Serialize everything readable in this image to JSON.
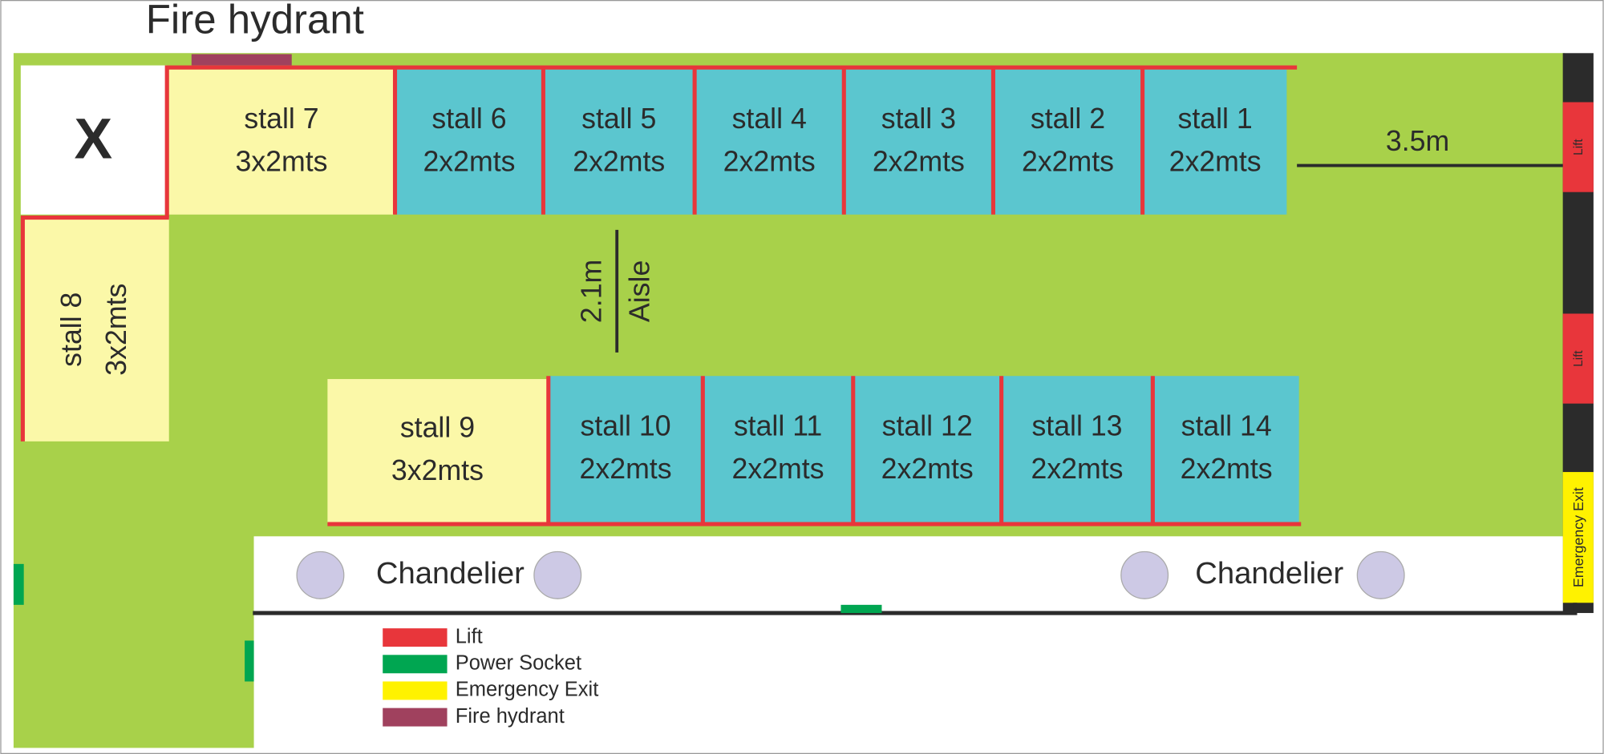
{
  "header": {
    "title": "Fire hydrant"
  },
  "plan": {
    "blocked": "X",
    "stalls": [
      {
        "name": "stall 1",
        "size": "2x2mts"
      },
      {
        "name": "stall 2",
        "size": "2x2mts"
      },
      {
        "name": "stall 3",
        "size": "2x2mts"
      },
      {
        "name": "stall 4",
        "size": "2x2mts"
      },
      {
        "name": "stall 5",
        "size": "2x2mts"
      },
      {
        "name": "stall 6",
        "size": "2x2mts"
      },
      {
        "name": "stall 7",
        "size": "3x2mts"
      },
      {
        "name": "stall 8",
        "size": "3x2mts"
      },
      {
        "name": "stall 9",
        "size": "3x2mts"
      },
      {
        "name": "stall 10",
        "size": "2x2mts"
      },
      {
        "name": "stall 11",
        "size": "2x2mts"
      },
      {
        "name": "stall 12",
        "size": "2x2mts"
      },
      {
        "name": "stall 13",
        "size": "2x2mts"
      },
      {
        "name": "stall 14",
        "size": "2x2mts"
      }
    ],
    "dimensions": {
      "end_width": "3.5m",
      "aisle_width": "2.1m",
      "aisle": "Aisle"
    },
    "wall": {
      "lifts": [
        "Lift",
        "Lift"
      ],
      "exit": "Emergency Exit"
    },
    "chandeliers": [
      "Chandelier",
      "Chandelier"
    ]
  },
  "legend": [
    "Lift",
    "Power Socket",
    "Emergency Exit",
    "Fire hydrant"
  ]
}
